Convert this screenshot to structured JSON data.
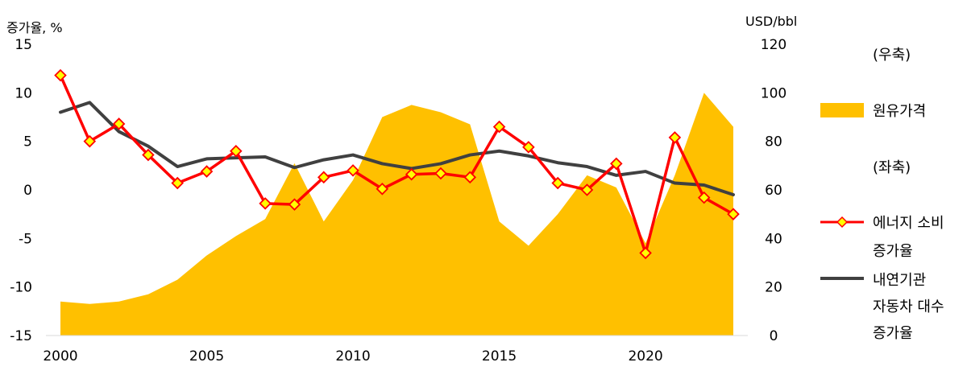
{
  "chart_data": {
    "type": "line",
    "x": [
      2000,
      2001,
      2002,
      2003,
      2004,
      2005,
      2006,
      2007,
      2008,
      2009,
      2010,
      2011,
      2012,
      2013,
      2014,
      2015,
      2016,
      2017,
      2018,
      2019,
      2020,
      2021,
      2022,
      2023
    ],
    "x_ticks": [
      "2000",
      "2005",
      "2010",
      "2015",
      "2020"
    ],
    "xlim": [
      2000,
      2023
    ],
    "y_left": {
      "label": "증가율, %",
      "range": [
        -15,
        15
      ],
      "ticks": [
        "15",
        "10",
        "5",
        "0",
        "-5",
        "-10",
        "-15"
      ]
    },
    "y_right": {
      "label": "USD/bbl",
      "range": [
        0,
        120
      ],
      "ticks": [
        "120",
        "100",
        "80",
        "60",
        "40",
        "20",
        "0"
      ]
    },
    "series": [
      {
        "name": "원유가격",
        "kind": "area",
        "axis": "right",
        "color": "#FFC000",
        "values": [
          14,
          13,
          14,
          17,
          23,
          33,
          41,
          48,
          71,
          47,
          64,
          90,
          95,
          92,
          87,
          47,
          37,
          50,
          66,
          61,
          38,
          66,
          100,
          86
        ]
      },
      {
        "name": "에너지 소비 증가율",
        "kind": "line",
        "axis": "left",
        "color": "#FF0000",
        "marker_fill": "#FFFF00",
        "values": [
          11.8,
          5.0,
          6.8,
          3.6,
          0.7,
          1.9,
          4.0,
          -1.4,
          -1.5,
          1.3,
          2.0,
          0.1,
          1.6,
          1.7,
          1.3,
          6.5,
          4.4,
          0.7,
          0.0,
          2.7,
          -6.5,
          5.4,
          -0.8,
          -2.5
        ]
      },
      {
        "name": "내연기관 자동차 대수 증가율",
        "kind": "line",
        "axis": "left",
        "color": "#404040",
        "values": [
          8.0,
          9.0,
          6.0,
          4.5,
          2.4,
          3.2,
          3.3,
          3.4,
          2.3,
          3.1,
          3.6,
          2.7,
          2.2,
          2.7,
          3.6,
          4.0,
          3.5,
          2.8,
          2.4,
          1.5,
          1.9,
          0.7,
          0.5,
          -0.5
        ]
      }
    ],
    "legend": {
      "placement": "right",
      "right_axis_note": "(우축)",
      "left_axis_note": "(좌축)",
      "area_label": "원유가격",
      "energy_label_lines": [
        "에너지 소비",
        "증가율"
      ],
      "vehicle_label_lines": [
        "내연기관",
        "자동차 대수",
        "증가율"
      ]
    }
  }
}
